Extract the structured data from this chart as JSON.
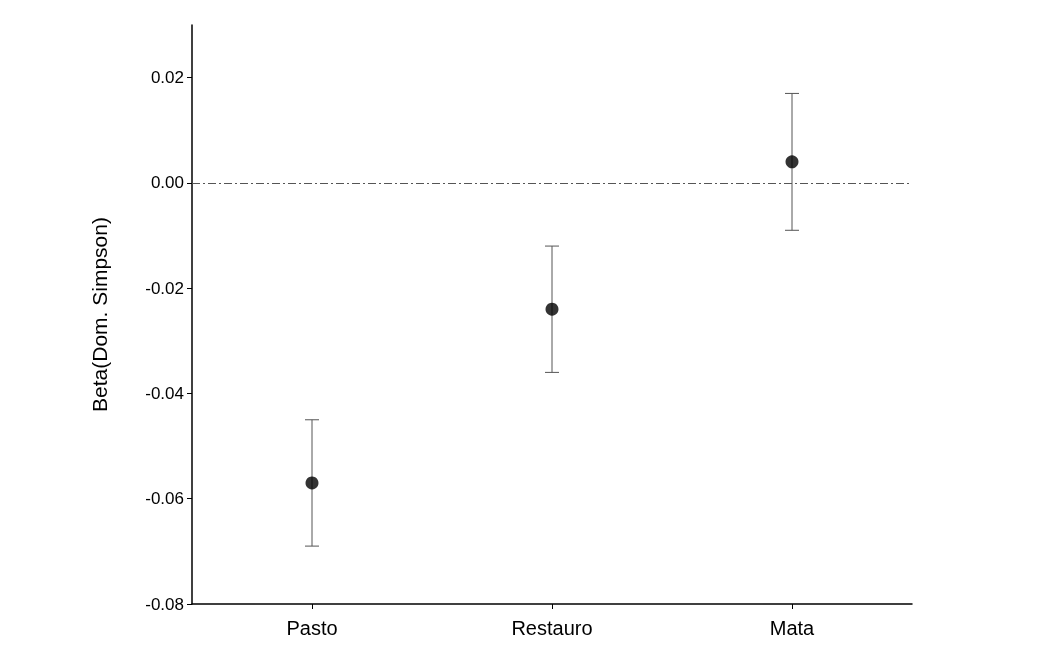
{
  "chart_data": {
    "type": "scatter",
    "ylabel": "Beta(Dom. Simpson)",
    "categories": [
      "Pasto",
      "Restauro",
      "Mata"
    ],
    "series": [
      {
        "color": "#000000",
        "values": [
          -0.057,
          -0.024,
          0.004
        ],
        "errors": [
          0.012,
          0.012,
          0.013
        ]
      }
    ],
    "ylim": [
      -0.08,
      0.03
    ],
    "yticks": [
      -0.08,
      -0.06,
      -0.04,
      -0.02,
      {
        "value": 0,
        "label": "0.00"
      },
      0.02
    ],
    "ref_lines": [
      {
        "axis": "y",
        "value": 0,
        "color": "#555555",
        "line_style": "dashed"
      }
    ],
    "grid": false,
    "marker": "circle"
  }
}
